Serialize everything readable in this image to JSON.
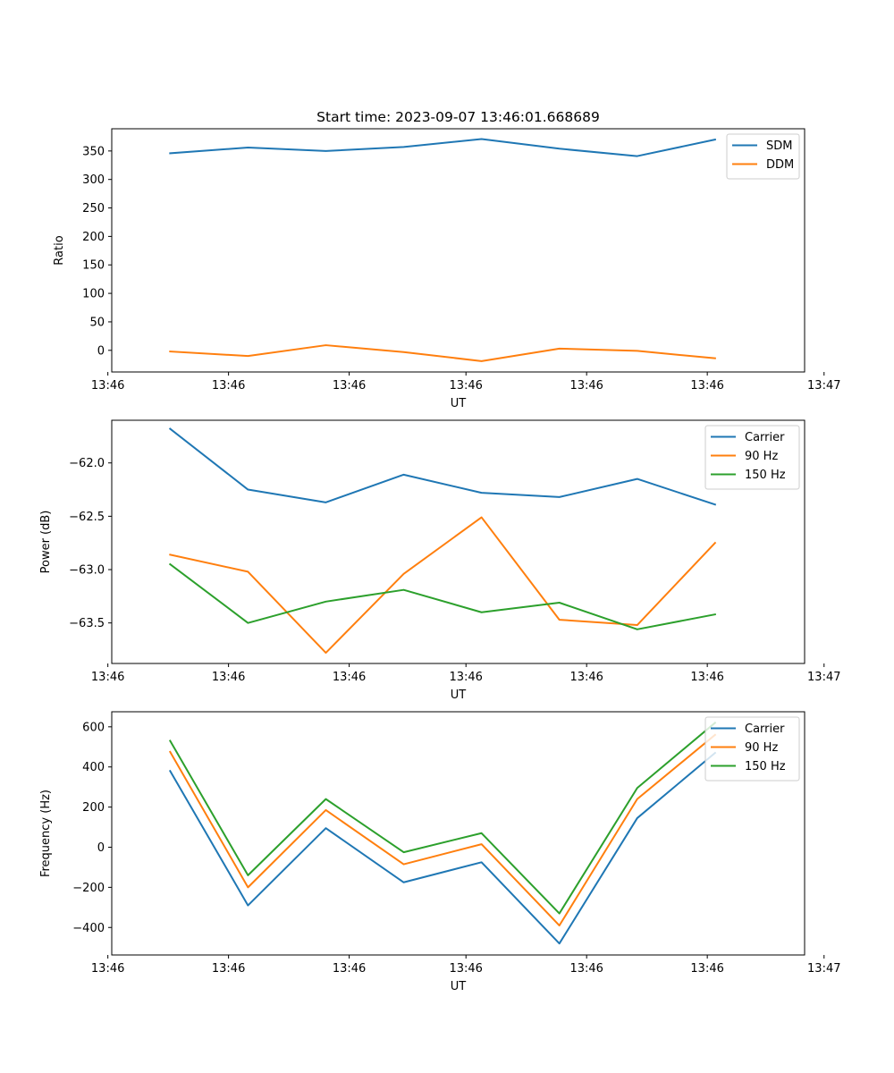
{
  "figure": {
    "title": "Start time: 2023-09-07 13:46:01.668689"
  },
  "chart_data": [
    {
      "type": "line",
      "title": "Start time: 2023-09-07 13:46:01.668689",
      "xlabel": "UT",
      "ylabel": "Ratio",
      "x": [
        1,
        2,
        3,
        4,
        5,
        6,
        7,
        8
      ],
      "xlim": [
        0.25,
        9.15
      ],
      "xticks": [
        0.2,
        1.75,
        3.3,
        4.8,
        6.35,
        7.9,
        9.4
      ],
      "xtick_labels": [
        "13:46",
        "13:46",
        "13:46",
        "13:46",
        "13:46",
        "13:46",
        "13:47"
      ],
      "ylim": [
        -38,
        389
      ],
      "yticks": [
        0,
        50,
        100,
        150,
        200,
        250,
        300,
        350
      ],
      "ytick_labels": [
        "0",
        "50",
        "100",
        "150",
        "200",
        "250",
        "300",
        "350"
      ],
      "legend": "top-right",
      "series": [
        {
          "name": "SDM",
          "color": "#1f77b4",
          "values": [
            346,
            356,
            350,
            357,
            371,
            354,
            341,
            370
          ]
        },
        {
          "name": "DDM",
          "color": "#ff7f0e",
          "values": [
            -2,
            -10,
            9,
            -3,
            -19,
            3,
            -1,
            -14
          ]
        }
      ]
    },
    {
      "type": "line",
      "title": "",
      "xlabel": "UT",
      "ylabel": "Power (dB)",
      "x": [
        1,
        2,
        3,
        4,
        5,
        6,
        7,
        8
      ],
      "xlim": [
        0.25,
        9.15
      ],
      "xticks": [
        0.2,
        1.75,
        3.3,
        4.8,
        6.35,
        7.9,
        9.4
      ],
      "xtick_labels": [
        "13:46",
        "13:46",
        "13:46",
        "13:46",
        "13:46",
        "13:46",
        "13:47"
      ],
      "ylim": [
        -63.88,
        -61.6
      ],
      "yticks": [
        -63.5,
        -63.0,
        -62.5,
        -62.0
      ],
      "ytick_labels": [
        "−63.5",
        "−63.0",
        "−62.5",
        "−62.0"
      ],
      "legend": "top-right",
      "series": [
        {
          "name": "Carrier",
          "color": "#1f77b4",
          "values": [
            -61.68,
            -62.25,
            -62.37,
            -62.11,
            -62.28,
            -62.32,
            -62.15,
            -62.39
          ]
        },
        {
          "name": "90 Hz",
          "color": "#ff7f0e",
          "values": [
            -62.86,
            -63.02,
            -63.78,
            -63.04,
            -62.51,
            -63.47,
            -63.52,
            -62.75
          ]
        },
        {
          "name": "150 Hz",
          "color": "#2ca02c",
          "values": [
            -62.95,
            -63.5,
            -63.3,
            -63.19,
            -63.4,
            -63.31,
            -63.56,
            -63.42
          ]
        }
      ]
    },
    {
      "type": "line",
      "title": "",
      "xlabel": "UT",
      "ylabel": "Frequency (Hz)",
      "x": [
        1,
        2,
        3,
        4,
        5,
        6,
        7,
        8
      ],
      "xlim": [
        0.25,
        9.15
      ],
      "xticks": [
        0.2,
        1.75,
        3.3,
        4.8,
        6.35,
        7.9,
        9.4
      ],
      "xtick_labels": [
        "13:46",
        "13:46",
        "13:46",
        "13:46",
        "13:46",
        "13:46",
        "13:47"
      ],
      "ylim": [
        -537,
        675
      ],
      "yticks": [
        -400,
        -200,
        0,
        200,
        400,
        600
      ],
      "ytick_labels": [
        "−400",
        "−200",
        "0",
        "200",
        "400",
        "600"
      ],
      "legend": "top-right",
      "series": [
        {
          "name": "Carrier",
          "color": "#1f77b4",
          "values": [
            380,
            -290,
            95,
            -175,
            -75,
            -480,
            145,
            470
          ]
        },
        {
          "name": "90 Hz",
          "color": "#ff7f0e",
          "values": [
            475,
            -200,
            185,
            -85,
            15,
            -390,
            240,
            560
          ]
        },
        {
          "name": "150 Hz",
          "color": "#2ca02c",
          "values": [
            530,
            -140,
            240,
            -25,
            70,
            -330,
            295,
            620
          ]
        }
      ]
    }
  ]
}
